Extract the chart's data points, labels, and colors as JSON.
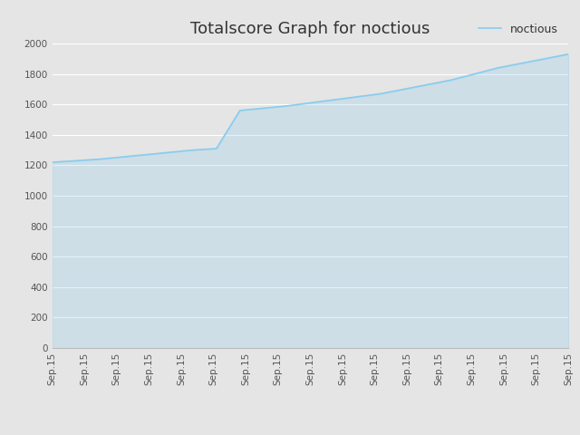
{
  "title": "Totalscore Graph for noctious",
  "legend_label": "noctious",
  "line_color": "#88ccee",
  "background_color": "#e5e5e5",
  "plot_bg_color": "#e5e5e5",
  "grid_color": "#ffffff",
  "ylim": [
    0,
    2000
  ],
  "yticks": [
    0,
    200,
    400,
    600,
    800,
    1000,
    1200,
    1400,
    1600,
    1800,
    2000
  ],
  "y_data": [
    1220,
    1230,
    1240,
    1255,
    1270,
    1285,
    1300,
    1310,
    1560,
    1575,
    1590,
    1610,
    1630,
    1650,
    1670,
    1700,
    1730,
    1760,
    1800,
    1840,
    1870,
    1900,
    1930
  ],
  "num_xticks": 17,
  "tick_label": "Sep.15",
  "title_fontsize": 13,
  "tick_fontsize": 7.5,
  "legend_fontsize": 9,
  "figwidth": 6.4,
  "figheight": 4.8,
  "dpi": 100
}
